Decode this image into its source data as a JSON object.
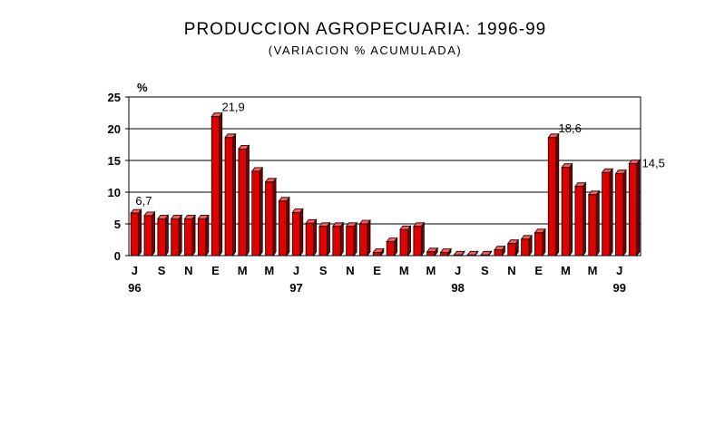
{
  "title": "PRODUCCION AGROPECUARIA: 1996-99",
  "subtitle": "(VARIACION % ACUMULADA)",
  "chart_data": {
    "type": "bar",
    "title": "PRODUCCION AGROPECUARIA: 1996-99",
    "subtitle": "(VARIACION % ACUMULADA)",
    "ylabel": "%",
    "ylim": [
      0,
      25
    ],
    "yticks": [
      0,
      5,
      10,
      15,
      20,
      25
    ],
    "grid": true,
    "bar_color": "#e00000",
    "values": [
      6.7,
      6.3,
      5.8,
      5.8,
      5.8,
      5.8,
      21.9,
      18.6,
      16.8,
      13.3,
      11.6,
      8.6,
      6.8,
      5.1,
      4.6,
      4.6,
      4.6,
      5.0,
      0.5,
      2.2,
      4.1,
      4.6,
      0.6,
      0.5,
      0.1,
      0.1,
      0.1,
      0.9,
      1.9,
      2.6,
      3.6,
      18.6,
      13.9,
      10.9,
      9.6,
      13.1,
      12.9,
      14.5
    ],
    "x_tick_labels": [
      {
        "index": 0,
        "label": "J"
      },
      {
        "index": 2,
        "label": "S"
      },
      {
        "index": 4,
        "label": "N"
      },
      {
        "index": 6,
        "label": "E"
      },
      {
        "index": 8,
        "label": "M"
      },
      {
        "index": 10,
        "label": "M"
      },
      {
        "index": 12,
        "label": "J"
      },
      {
        "index": 14,
        "label": "S"
      },
      {
        "index": 16,
        "label": "N"
      },
      {
        "index": 18,
        "label": "E"
      },
      {
        "index": 20,
        "label": "M"
      },
      {
        "index": 22,
        "label": "M"
      },
      {
        "index": 24,
        "label": "J"
      },
      {
        "index": 26,
        "label": "S"
      },
      {
        "index": 28,
        "label": "N"
      },
      {
        "index": 30,
        "label": "E"
      },
      {
        "index": 32,
        "label": "M"
      },
      {
        "index": 34,
        "label": "M"
      },
      {
        "index": 36,
        "label": "J"
      }
    ],
    "year_labels": [
      {
        "index": 0,
        "label": "96"
      },
      {
        "index": 12,
        "label": "97"
      },
      {
        "index": 24,
        "label": "98"
      },
      {
        "index": 36,
        "label": "99"
      }
    ],
    "data_labels": [
      {
        "index": 0,
        "label": "6,7"
      },
      {
        "index": 6,
        "label": "21,9"
      },
      {
        "index": 31,
        "label": "18,6"
      },
      {
        "index": 37,
        "label": "14,5"
      }
    ]
  }
}
